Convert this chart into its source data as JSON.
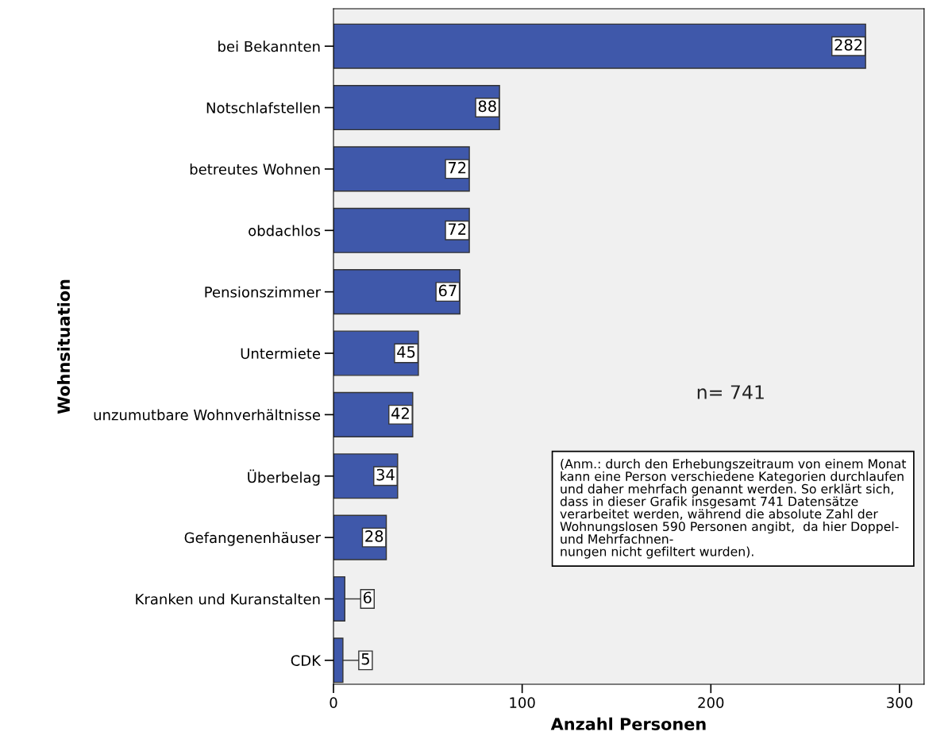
{
  "chart_data": {
    "type": "bar",
    "orientation": "horizontal",
    "xlabel": "Anzahl Personen",
    "ylabel": "Wohnsituation",
    "categories": [
      "bei Bekannten",
      "Notschlafstellen",
      "betreutes Wohnen",
      "obdachlos",
      "Pensionszimmer",
      "Untermiete",
      "unzumutbare Wohnverhältnisse",
      "Überbelag",
      "Gefangenenhäuser",
      "Kranken und Kuranstalten",
      "CDK"
    ],
    "values": [
      282,
      88,
      72,
      72,
      67,
      45,
      42,
      34,
      28,
      6,
      5
    ],
    "color": "#3f58aa",
    "xlim": [
      0,
      313
    ],
    "xticks": [
      0,
      100,
      200,
      300
    ],
    "grid": false,
    "data_labels": true,
    "annotations": [
      "n= 741",
      "(Anm.: durch den Erhebungszeitraum von einem Monat kann eine Person verschiedene Kategorien durchlaufen und daher mehrfach genannt werden. So erklärt sich, dass in dieser Grafik insgesamt 741 Datensätze verarbeitet werden, während die absolute Zahl der Wohnungslosen 590 Personen angibt,  da hier Doppel- und Mehrfachnen-\nnungen nicht gefiltert wurden)."
    ]
  }
}
